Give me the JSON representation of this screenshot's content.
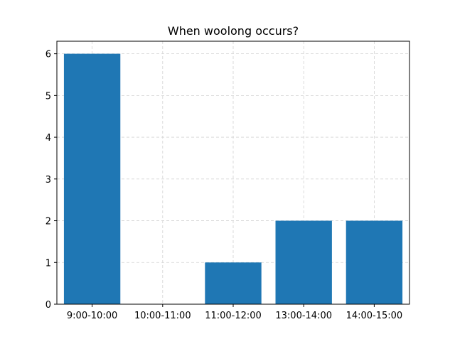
{
  "chart_data": {
    "type": "bar",
    "title": "When woolong occurs?",
    "xlabel": "",
    "ylabel": "",
    "categories": [
      "9:00-10:00",
      "10:00-11:00",
      "11:00-12:00",
      "13:00-14:00",
      "14:00-15:00"
    ],
    "values": [
      6,
      0,
      1,
      2,
      2
    ],
    "ylim": [
      0,
      6.3
    ],
    "yticks": [
      0,
      1,
      2,
      3,
      4,
      5,
      6
    ],
    "grid": true,
    "grid_style": "dashed",
    "legend": "none",
    "colors": {
      "bar": "#1f77b4",
      "grid": "#d3d3d3",
      "axis": "#000000",
      "background": "#ffffff"
    }
  }
}
